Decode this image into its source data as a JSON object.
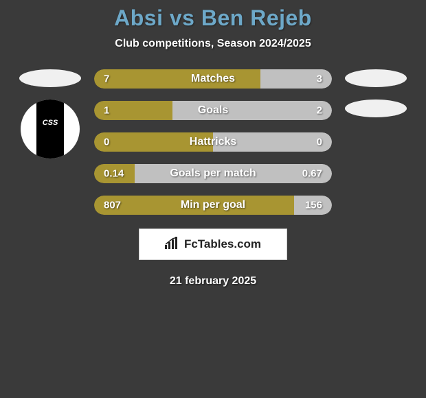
{
  "header": {
    "title": "Absi vs Ben Rejeb",
    "title_color": "#6da8c8",
    "title_fontsize": 32,
    "subtitle": "Club competitions, Season 2024/2025",
    "subtitle_fontsize": 16
  },
  "background_color": "#3a3a3a",
  "bar_style": {
    "height": 28,
    "radius": 14,
    "left_color": "#a89532",
    "right_color": "#c0c0c0",
    "label_fontsize": 16,
    "value_fontsize": 15,
    "text_color": "#ffffff"
  },
  "stats": [
    {
      "label": "Matches",
      "left_val": "7",
      "right_val": "3",
      "left_pct": 70
    },
    {
      "label": "Goals",
      "left_val": "1",
      "right_val": "2",
      "left_pct": 33
    },
    {
      "label": "Hattricks",
      "left_val": "0",
      "right_val": "0",
      "left_pct": 50
    },
    {
      "label": "Goals per match",
      "left_val": "0.14",
      "right_val": "0.67",
      "left_pct": 17
    },
    {
      "label": "Min per goal",
      "left_val": "807",
      "right_val": "156",
      "left_pct": 84
    }
  ],
  "left_player": {
    "ellipse_color": "#f0f0f0",
    "club_logo_bg": "#ffffff",
    "club_logo_stripe": "#000000",
    "club_logo_text": "CSS"
  },
  "right_player": {
    "ellipse_color": "#f0f0f0"
  },
  "footer": {
    "badge_text": "FcTables.com",
    "badge_bg": "#ffffff",
    "date": "21 february 2025"
  }
}
